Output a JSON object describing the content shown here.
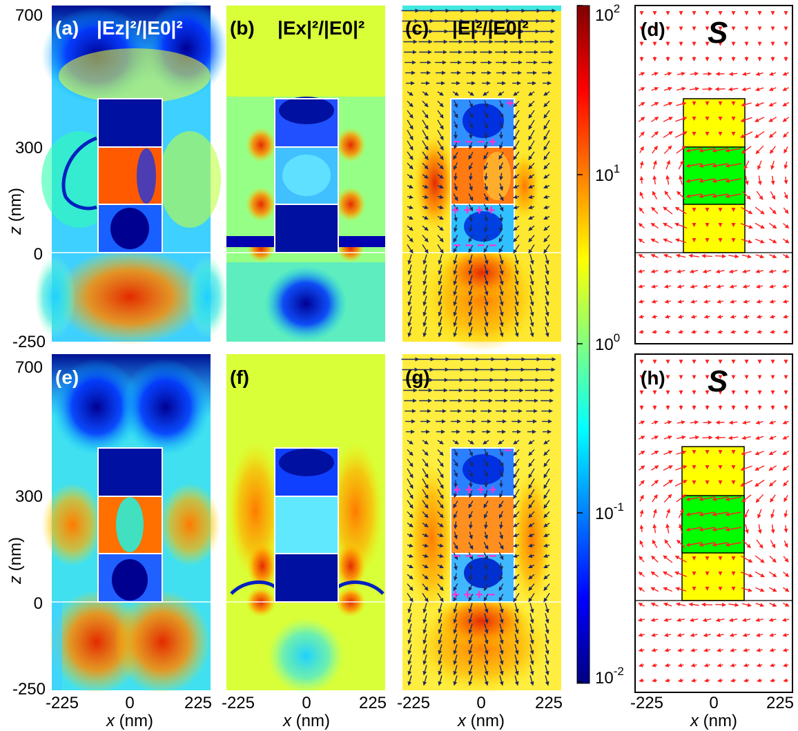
{
  "colorbar": {
    "ticks": [
      {
        "base": "10",
        "exp": "2"
      },
      {
        "base": "10",
        "exp": "1"
      },
      {
        "base": "10",
        "exp": "0"
      },
      {
        "base": "10",
        "exp": "-1"
      },
      {
        "base": "10",
        "exp": "-2"
      }
    ]
  },
  "z_axis": {
    "label": "z",
    "unit": " (nm)",
    "ticks": [
      "700",
      "300",
      "0",
      "-250"
    ]
  },
  "x_axis": {
    "label": "x",
    "unit": " (nm)",
    "ticks": [
      "-225",
      "0",
      "225"
    ]
  },
  "panels": {
    "a": {
      "letter": "(a)",
      "quantity": "|Ez|²/|E0|²"
    },
    "b": {
      "letter": "(b)",
      "quantity": "|Ex|²/|E0|²"
    },
    "c": {
      "letter": "(c)",
      "quantity": "|E|²/|E0|²"
    },
    "d": {
      "letter": "(d)",
      "quantity": "S"
    },
    "e": {
      "letter": "(e)"
    },
    "f": {
      "letter": "(f)"
    },
    "g": {
      "letter": "(g)"
    },
    "h": {
      "letter": "(h)",
      "quantity": "S"
    }
  },
  "charges": {
    "c": [
      "+",
      "− − − +",
      "+ + + +",
      "− − − −"
    ],
    "g": [
      "−",
      "+ + + +",
      "− − − −",
      "+ + + −"
    ]
  },
  "colors": {
    "field_low": "#00007f",
    "field_mid": "#80ff80",
    "field_high": "#7f0000",
    "gold": "#ffff00",
    "spacer": "#00ff00",
    "poynting_arrow": "#ff2020",
    "field_arrow": "#202a5a",
    "charge": "#ff30d0"
  }
}
